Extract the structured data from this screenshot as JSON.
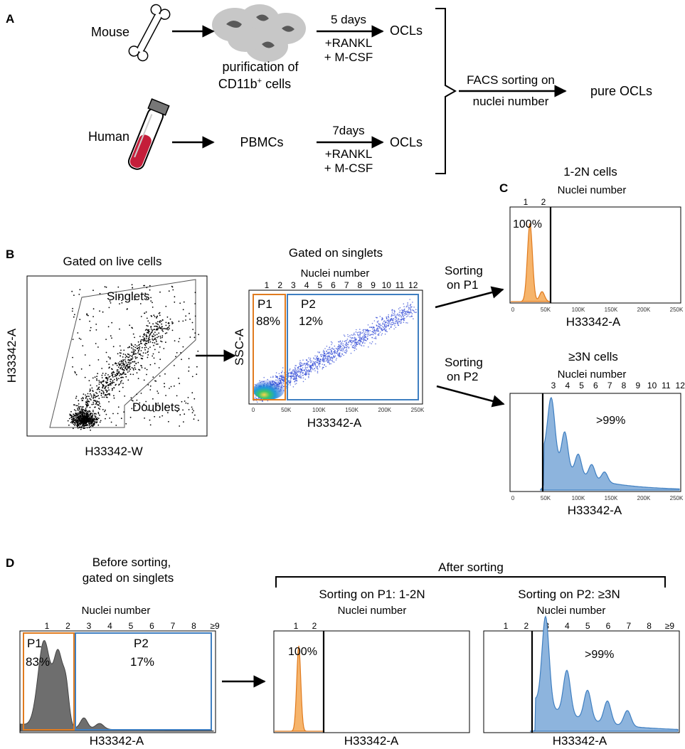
{
  "panels": {
    "a": "A",
    "b": "B",
    "c": "C",
    "d": "D"
  },
  "workflow": {
    "mouse_label": "Mouse",
    "human_label": "Human",
    "mouse_step": "purification of",
    "mouse_step_line2": "CD11b",
    "mouse_step_sup": "+",
    "mouse_step_line2_rest": " cells",
    "human_step": "PBMCs",
    "mouse_days": "5 days",
    "human_days": "7days",
    "rankl": "+RANKL",
    "mcsf": "+ M-CSF",
    "ocls": "OCLs",
    "facs_line1": "FACS sorting on",
    "facs_line2": "nuclei number",
    "pure": "pure OCLs",
    "bone_icon": "bone-icon",
    "cells_icon": "cells-icon",
    "tube_icon": "blood-tube-icon"
  },
  "panel_b": {
    "left_title": "Gated on live cells",
    "left_ylabel": "H33342-A",
    "left_xlabel": "H33342-W",
    "singlets": "Singlets",
    "doublets": "Doublets",
    "right_title": "Gated on singlets",
    "nuclei_label": "Nuclei number",
    "nuclei_ticks": [
      "1",
      "2",
      "3",
      "4",
      "5",
      "6",
      "7",
      "8",
      "9",
      "10",
      "11",
      "12"
    ],
    "right_ylabel": "SSC-A",
    "right_xlabel": "H33342-A",
    "x_ticks": [
      "0",
      "50K",
      "100K",
      "150K",
      "200K",
      "250K"
    ],
    "p1": "P1",
    "p1_pct": "88%",
    "p2": "P2",
    "p2_pct": "12%",
    "sort_p1_l1": "Sorting",
    "sort_p1_l2": "on P1",
    "sort_p2_l1": "Sorting",
    "sort_p2_l2": "on P2"
  },
  "panel_c": {
    "top_title": "1-2N cells",
    "nuclei_label": "Nuclei number",
    "top_nuclei": [
      "1",
      "2"
    ],
    "top_pct": "100%",
    "top_xlabel": "H33342-A",
    "bottom_title": "≥3N cells",
    "bottom_nuclei": [
      "3",
      "4",
      "5",
      "6",
      "7",
      "8",
      "9",
      "10",
      "11",
      "12"
    ],
    "bottom_pct": ">99%",
    "bottom_xlabel": "H33342-A",
    "x_ticks": [
      "0",
      "50K",
      "100K",
      "150K",
      "200K",
      "250K"
    ]
  },
  "panel_d": {
    "before_l1": "Before sorting,",
    "before_l2": "gated on singlets",
    "after": "After sorting",
    "sort1": "Sorting on P1: 1-2N",
    "sort2": "Sorting on P2: ≥3N",
    "nuclei_label": "Nuclei number",
    "nuclei_ticks": [
      "1",
      "2",
      "3",
      "4",
      "5",
      "6",
      "7",
      "8",
      "≥9"
    ],
    "p1": "P1",
    "p1_pct": "83%",
    "p2": "P2",
    "p2_pct": "17%",
    "mid_nuclei": [
      "1",
      "2"
    ],
    "mid_pct": "100%",
    "right_pct": ">99%",
    "xlabel": "H33342-A"
  },
  "colors": {
    "orange": "#e07b1f",
    "blue": "#3f7fc1",
    "fill_orange": "#f6b46b",
    "fill_blue": "#8db4dd",
    "gray": "#6e6e6e"
  }
}
